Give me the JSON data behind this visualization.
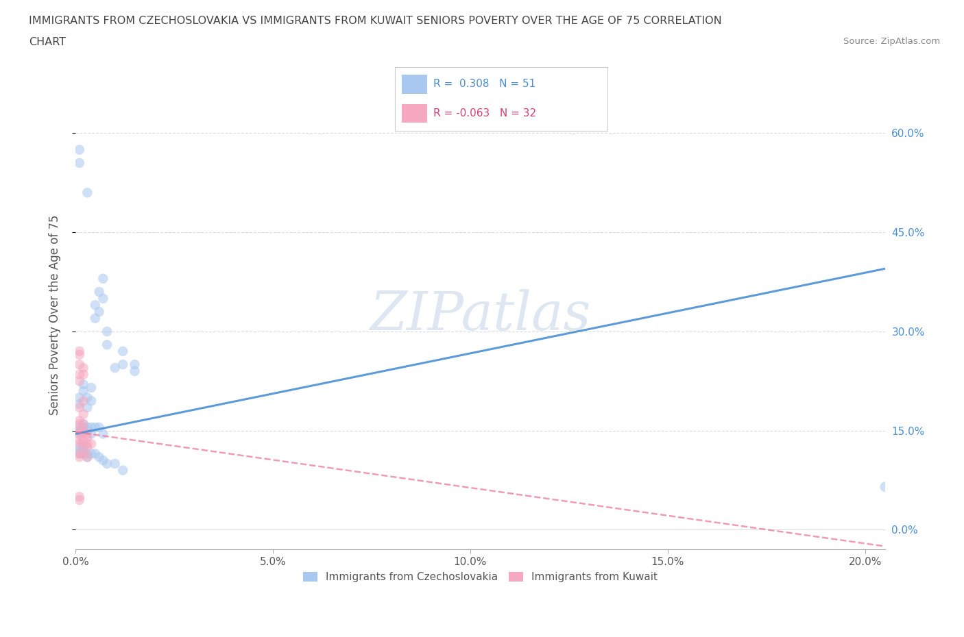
{
  "title_line1": "IMMIGRANTS FROM CZECHOSLOVAKIA VS IMMIGRANTS FROM KUWAIT SENIORS POVERTY OVER THE AGE OF 75 CORRELATION",
  "title_line2": "CHART",
  "source": "Source: ZipAtlas.com",
  "ylabel": "Seniors Poverty Over the Age of 75",
  "xlim": [
    0.0,
    0.205
  ],
  "ylim": [
    -0.03,
    0.68
  ],
  "x_tick_vals": [
    0.0,
    0.05,
    0.1,
    0.15,
    0.2
  ],
  "x_tick_labels": [
    "0.0%",
    "5.0%",
    "10.0%",
    "15.0%",
    "20.0%"
  ],
  "y_tick_vals": [
    0.0,
    0.15,
    0.3,
    0.45,
    0.6
  ],
  "y_tick_labels": [
    "0.0%",
    "15.0%",
    "30.0%",
    "45.0%",
    "60.0%"
  ],
  "watermark": "ZIPatlas",
  "czech_dot_color": "#A8C8F0",
  "kuwait_dot_color": "#F5A8C0",
  "czech_line_color": "#4A8FD4",
  "kuwait_line_color": "#E87AA0",
  "title_color": "#444444",
  "source_color": "#888888",
  "right_tick_color": "#4A8FD4",
  "grid_color": "#DCDCDC",
  "legend_text_czech": "#4A8FD4",
  "legend_text_kuwait": "#D44070",
  "bottom_label_color": "#555555",
  "legend_label_czech": "R =  0.308   N = 51",
  "legend_label_kuwait": "R = -0.063   N = 32",
  "legend_bottom_czech": "Immigrants from Czechoslovakia",
  "legend_bottom_kuwait": "Immigrants from Kuwait",
  "czech_line_x": [
    0.0,
    0.205
  ],
  "czech_line_y": [
    0.145,
    0.395
  ],
  "kuwait_line_x": [
    0.0,
    0.205
  ],
  "kuwait_line_y": [
    0.148,
    -0.025
  ],
  "czechoslovakia_dots": [
    [
      0.001,
      0.575
    ],
    [
      0.001,
      0.555
    ],
    [
      0.003,
      0.51
    ],
    [
      0.005,
      0.34
    ],
    [
      0.005,
      0.32
    ],
    [
      0.006,
      0.36
    ],
    [
      0.006,
      0.33
    ],
    [
      0.007,
      0.38
    ],
    [
      0.007,
      0.35
    ],
    [
      0.008,
      0.3
    ],
    [
      0.008,
      0.28
    ],
    [
      0.01,
      0.245
    ],
    [
      0.012,
      0.27
    ],
    [
      0.012,
      0.25
    ],
    [
      0.015,
      0.25
    ],
    [
      0.015,
      0.24
    ],
    [
      0.001,
      0.2
    ],
    [
      0.001,
      0.19
    ],
    [
      0.002,
      0.22
    ],
    [
      0.002,
      0.21
    ],
    [
      0.003,
      0.2
    ],
    [
      0.003,
      0.185
    ],
    [
      0.004,
      0.215
    ],
    [
      0.004,
      0.195
    ],
    [
      0.001,
      0.155
    ],
    [
      0.001,
      0.15
    ],
    [
      0.001,
      0.145
    ],
    [
      0.002,
      0.16
    ],
    [
      0.002,
      0.155
    ],
    [
      0.003,
      0.155
    ],
    [
      0.003,
      0.15
    ],
    [
      0.004,
      0.155
    ],
    [
      0.004,
      0.145
    ],
    [
      0.005,
      0.155
    ],
    [
      0.006,
      0.155
    ],
    [
      0.007,
      0.145
    ],
    [
      0.001,
      0.125
    ],
    [
      0.001,
      0.12
    ],
    [
      0.001,
      0.115
    ],
    [
      0.002,
      0.125
    ],
    [
      0.002,
      0.12
    ],
    [
      0.003,
      0.115
    ],
    [
      0.003,
      0.11
    ],
    [
      0.004,
      0.115
    ],
    [
      0.005,
      0.115
    ],
    [
      0.006,
      0.11
    ],
    [
      0.007,
      0.105
    ],
    [
      0.008,
      0.1
    ],
    [
      0.01,
      0.1
    ],
    [
      0.012,
      0.09
    ],
    [
      0.205,
      0.065
    ]
  ],
  "kuwait_dots": [
    [
      0.001,
      0.27
    ],
    [
      0.001,
      0.265
    ],
    [
      0.001,
      0.25
    ],
    [
      0.002,
      0.245
    ],
    [
      0.001,
      0.235
    ],
    [
      0.002,
      0.235
    ],
    [
      0.001,
      0.225
    ],
    [
      0.002,
      0.195
    ],
    [
      0.001,
      0.185
    ],
    [
      0.002,
      0.175
    ],
    [
      0.001,
      0.165
    ],
    [
      0.001,
      0.16
    ],
    [
      0.002,
      0.16
    ],
    [
      0.001,
      0.15
    ],
    [
      0.001,
      0.145
    ],
    [
      0.002,
      0.15
    ],
    [
      0.002,
      0.145
    ],
    [
      0.003,
      0.145
    ],
    [
      0.003,
      0.14
    ],
    [
      0.001,
      0.135
    ],
    [
      0.001,
      0.13
    ],
    [
      0.002,
      0.135
    ],
    [
      0.002,
      0.13
    ],
    [
      0.003,
      0.13
    ],
    [
      0.003,
      0.125
    ],
    [
      0.004,
      0.13
    ],
    [
      0.001,
      0.115
    ],
    [
      0.001,
      0.11
    ],
    [
      0.002,
      0.115
    ],
    [
      0.003,
      0.11
    ],
    [
      0.001,
      0.05
    ],
    [
      0.001,
      0.045
    ]
  ]
}
